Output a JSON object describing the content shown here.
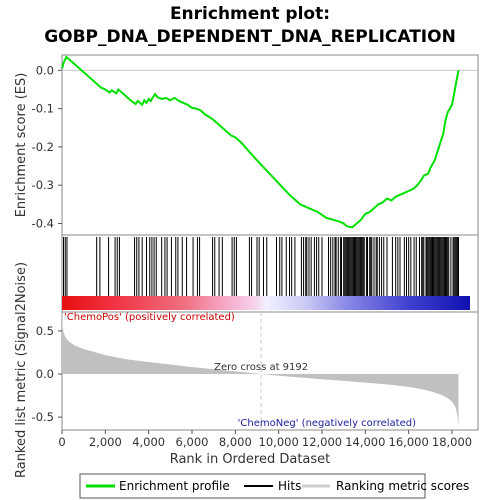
{
  "chart_data": {
    "type": "line",
    "title_line1": "Enrichment plot:",
    "title_line2": "GOBP_DNA_DEPENDENT_DNA_REPLICATION",
    "xlabel": "Rank in Ordered Dataset",
    "ylabel_top": "Enrichment score (ES)",
    "ylabel_bottom": "Ranked list metric (Signal2Noise)",
    "xlim": [
      0,
      19200
    ],
    "x_ticks": [
      0,
      2000,
      4000,
      6000,
      8000,
      10000,
      12000,
      14000,
      16000,
      18000
    ],
    "x_tick_labels": [
      "0",
      "2,000",
      "4,000",
      "6,000",
      "8,000",
      "10,000",
      "12,000",
      "14,000",
      "16,000",
      "18,000"
    ],
    "es_ylim": [
      -0.43,
      0.04
    ],
    "es_ticks": [
      0.0,
      -0.1,
      -0.2,
      -0.3,
      -0.4
    ],
    "es_tick_labels": [
      "0.0",
      "-0.1",
      "-0.2",
      "-0.3",
      "-0.4"
    ],
    "metric_ylim": [
      -0.65,
      0.72
    ],
    "metric_ticks": [
      0.5,
      0.0,
      -0.5
    ],
    "metric_tick_labels": [
      "0.5",
      "0.0",
      "-0.5"
    ],
    "zero_cross_rank": 9192,
    "zero_cross_label": "Zero cross at 9192",
    "pos_label": "'ChemoPos' (positively correlated)",
    "neg_label": "'ChemoNeg' (negatively correlated)",
    "es_curve": {
      "x": [
        0,
        80,
        200,
        400,
        700,
        1000,
        1300,
        1600,
        1800,
        2000,
        2200,
        2300,
        2500,
        2600,
        2800,
        3000,
        3200,
        3400,
        3500,
        3700,
        3800,
        3900,
        4000,
        4100,
        4200,
        4300,
        4400,
        4600,
        4800,
        5000,
        5200,
        5400,
        5600,
        5800,
        6000,
        6200,
        6400,
        6600,
        6800,
        7000,
        7200,
        7400,
        7600,
        7800,
        8000,
        8300,
        8600,
        9000,
        9500,
        10000,
        10500,
        11000,
        11400,
        11800,
        12200,
        12500,
        12800,
        13000,
        13100,
        13200,
        13400,
        13600,
        13800,
        14000,
        14200,
        14400,
        14600,
        14800,
        15000,
        15200,
        15400,
        15600,
        15800,
        16000,
        16200,
        16400,
        16600,
        16700,
        16900,
        17000,
        17200,
        17400,
        17600,
        17700,
        17800,
        17900,
        18000,
        18100,
        18200,
        18300
      ],
      "y": [
        0.005,
        0.02,
        0.035,
        0.025,
        0.01,
        -0.005,
        -0.02,
        -0.035,
        -0.045,
        -0.05,
        -0.058,
        -0.052,
        -0.06,
        -0.05,
        -0.06,
        -0.07,
        -0.08,
        -0.088,
        -0.08,
        -0.09,
        -0.078,
        -0.085,
        -0.075,
        -0.08,
        -0.07,
        -0.062,
        -0.07,
        -0.075,
        -0.072,
        -0.078,
        -0.072,
        -0.08,
        -0.085,
        -0.09,
        -0.098,
        -0.1,
        -0.105,
        -0.115,
        -0.122,
        -0.13,
        -0.14,
        -0.15,
        -0.16,
        -0.17,
        -0.175,
        -0.19,
        -0.21,
        -0.235,
        -0.265,
        -0.295,
        -0.325,
        -0.35,
        -0.36,
        -0.37,
        -0.385,
        -0.39,
        -0.395,
        -0.4,
        -0.405,
        -0.408,
        -0.41,
        -0.4,
        -0.39,
        -0.375,
        -0.37,
        -0.36,
        -0.35,
        -0.345,
        -0.335,
        -0.34,
        -0.33,
        -0.325,
        -0.32,
        -0.315,
        -0.31,
        -0.3,
        -0.285,
        -0.275,
        -0.27,
        -0.255,
        -0.235,
        -0.2,
        -0.165,
        -0.13,
        -0.11,
        -0.1,
        -0.09,
        -0.06,
        -0.03,
        0.0
      ]
    },
    "hit_ranks": [
      70,
      150,
      230,
      1600,
      1750,
      2150,
      2450,
      2550,
      2650,
      3350,
      3450,
      3550,
      3700,
      3900,
      4050,
      4150,
      4250,
      4350,
      4600,
      4750,
      4850,
      5050,
      5250,
      5350,
      5550,
      5750,
      6050,
      6250,
      6350,
      6950,
      7050,
      7250,
      7400,
      7850,
      7950,
      8050,
      8650,
      8750,
      9000,
      9100,
      9300,
      9450,
      9900,
      10050,
      10150,
      10350,
      10500,
      10600,
      10750,
      11050,
      11150,
      11250,
      11300,
      11400,
      11500,
      11650,
      11750,
      11850,
      12000,
      12300,
      12400,
      12500,
      12600,
      12650,
      12750,
      12850,
      12900,
      13000,
      13050,
      13100,
      13150,
      13200,
      13250,
      13300,
      13350,
      13400,
      13450,
      13500,
      13550,
      13600,
      13650,
      13700,
      13750,
      13800,
      13850,
      13900,
      13950,
      14050,
      14100,
      14200,
      14250,
      14300,
      14400,
      14500,
      14550,
      14650,
      14750,
      14850,
      15000,
      15250,
      15400,
      15500,
      15600,
      15800,
      15900,
      16000,
      16100,
      16250,
      16350,
      16500,
      16600,
      16650,
      16700,
      16800,
      16850,
      16900,
      16950,
      17000,
      17050,
      17100,
      17150,
      17200,
      17250,
      17300,
      17350,
      17400,
      17450,
      17500,
      17550,
      17600,
      17650,
      17700,
      17750,
      17800,
      17850,
      17950,
      18050,
      18100,
      18150,
      18200,
      18250,
      18300
    ],
    "metric_curve": {
      "x": [
        0,
        30,
        80,
        150,
        300,
        600,
        1000,
        2000,
        3000,
        4000,
        5000,
        6000,
        7000,
        8000,
        9192,
        10000,
        11000,
        12000,
        13000,
        14000,
        15000,
        16000,
        16500,
        17000,
        17500,
        17800,
        18000,
        18150,
        18250,
        18300
      ],
      "y": [
        0.72,
        0.55,
        0.48,
        0.43,
        0.38,
        0.33,
        0.29,
        0.22,
        0.17,
        0.14,
        0.11,
        0.08,
        0.055,
        0.03,
        0.0,
        -0.02,
        -0.04,
        -0.06,
        -0.08,
        -0.1,
        -0.12,
        -0.15,
        -0.17,
        -0.2,
        -0.24,
        -0.28,
        -0.32,
        -0.38,
        -0.48,
        -0.62
      ]
    },
    "legend": [
      "Enrichment profile",
      "Hits",
      "Ranking metric scores"
    ],
    "colors": {
      "es_line": "#00e000",
      "hits": "#000000",
      "metric_fill": "#c0c0c0",
      "pos_text": "#cc0000",
      "neg_text": "#2020a0",
      "zero_line": "#c8c8c8"
    }
  }
}
